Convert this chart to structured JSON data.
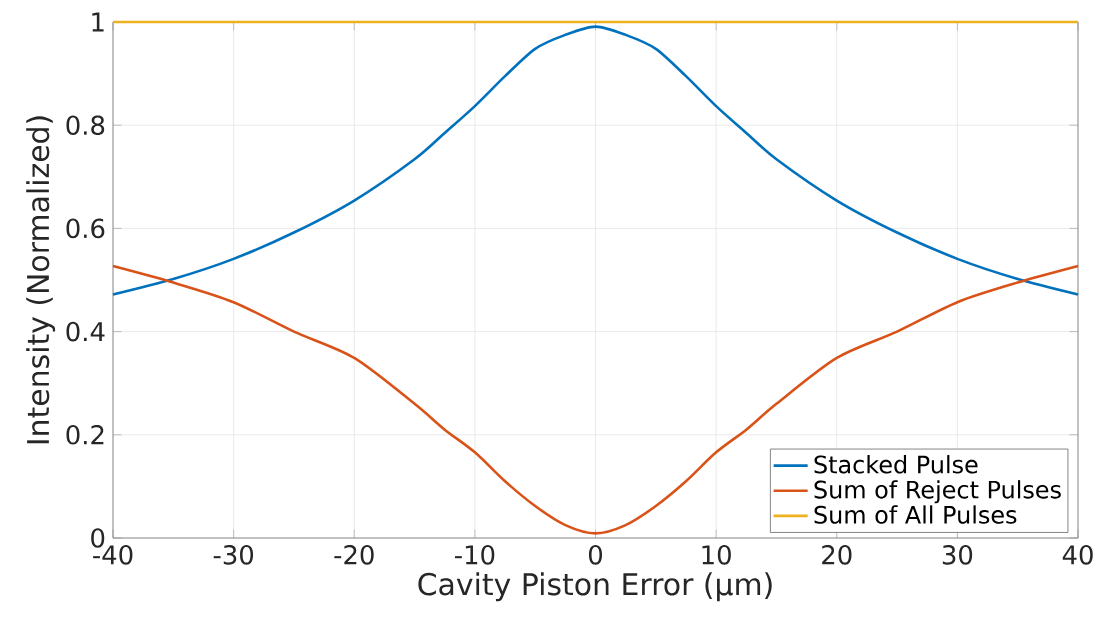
{
  "chart_data": {
    "type": "line",
    "xlabel": "Cavity Piston Error (μm)",
    "ylabel": "Intensity (Normalized)",
    "x": [
      -40,
      -35,
      -30,
      -25,
      -20,
      -15,
      -12.5,
      -10,
      -7.5,
      -5,
      -2.5,
      0,
      2.5,
      5,
      7.5,
      10,
      12.5,
      15,
      20,
      25,
      30,
      35,
      40
    ],
    "series": [
      {
        "name": "Stacked Pulse",
        "color": "#0072bd",
        "values": [
          0.472,
          0.502,
          0.541,
          0.592,
          0.654,
          0.734,
          0.785,
          0.837,
          0.895,
          0.948,
          0.975,
          0.991,
          0.975,
          0.948,
          0.895,
          0.837,
          0.785,
          0.734,
          0.654,
          0.592,
          0.541,
          0.502,
          0.472
        ]
      },
      {
        "name": "Sum of Reject Pulses",
        "color": "#d95319",
        "values": [
          0.527,
          0.495,
          0.457,
          0.4,
          0.349,
          0.26,
          0.21,
          0.166,
          0.11,
          0.062,
          0.025,
          0.009,
          0.025,
          0.062,
          0.11,
          0.166,
          0.21,
          0.26,
          0.349,
          0.4,
          0.457,
          0.495,
          0.527
        ]
      },
      {
        "name": "Sum of All Pulses",
        "color": "#edb120",
        "values": [
          1,
          1,
          1,
          1,
          1,
          1,
          1,
          1,
          1,
          1,
          1,
          1,
          1,
          1,
          1,
          1,
          1,
          1,
          1,
          1,
          1,
          1,
          1
        ]
      }
    ],
    "xlim": [
      -40,
      40
    ],
    "ylim": [
      0,
      1
    ],
    "xticks": [
      -40,
      -30,
      -20,
      -10,
      0,
      10,
      20,
      30,
      40
    ],
    "yticks": [
      0,
      0.2,
      0.4,
      0.6,
      0.8,
      1
    ],
    "grid": true,
    "legend": "bottom right",
    "line_style": "solid"
  }
}
